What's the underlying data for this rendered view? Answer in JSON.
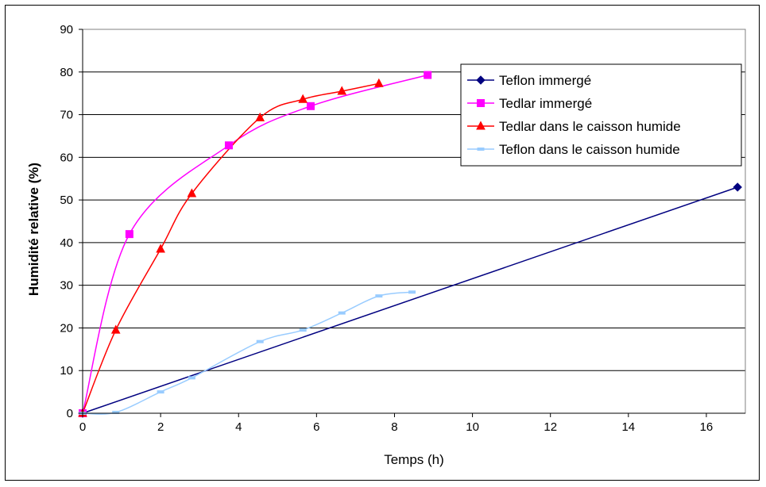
{
  "chart_data": {
    "type": "line",
    "title": "",
    "xlabel": "Temps (h)",
    "ylabel": "Humidité relative (%)",
    "xlim": [
      0,
      17
    ],
    "ylim": [
      0,
      90
    ],
    "xticks": [
      0,
      2,
      4,
      6,
      8,
      10,
      12,
      14,
      16
    ],
    "yticks": [
      0,
      10,
      20,
      30,
      40,
      50,
      60,
      70,
      80,
      90
    ],
    "grid": "horizontal",
    "legend_position": "top-right",
    "series": [
      {
        "name": "Teflon immergé",
        "color": "#000080",
        "marker": "diamond",
        "smooth": false,
        "points": [
          [
            0,
            0
          ],
          [
            16.8,
            53
          ]
        ]
      },
      {
        "name": "Tedlar immergé",
        "color": "#ff00ff",
        "marker": "square",
        "smooth": true,
        "points": [
          [
            0,
            0
          ],
          [
            1.2,
            42
          ],
          [
            3.75,
            62.8
          ],
          [
            5.85,
            72
          ],
          [
            8.85,
            79.3
          ]
        ]
      },
      {
        "name": "Tedlar dans le caisson humide",
        "color": "#ff0000",
        "marker": "triangle",
        "smooth": true,
        "points": [
          [
            0,
            0
          ],
          [
            0.85,
            19.5
          ],
          [
            2,
            38.5
          ],
          [
            2.8,
            51.5
          ],
          [
            4.55,
            69.3
          ],
          [
            5.65,
            73.6
          ],
          [
            6.65,
            75.5
          ],
          [
            7.6,
            77.3
          ]
        ]
      },
      {
        "name": "Teflon dans le caisson humide",
        "color": "#99ccff",
        "marker": "dash",
        "smooth": true,
        "points": [
          [
            0,
            0
          ],
          [
            0.85,
            0.2
          ],
          [
            2,
            5
          ],
          [
            2.8,
            8.3
          ],
          [
            4.55,
            16.8
          ],
          [
            5.65,
            19.5
          ],
          [
            6.65,
            23.5
          ],
          [
            7.6,
            27.5
          ],
          [
            8.45,
            28.4
          ]
        ]
      }
    ]
  }
}
